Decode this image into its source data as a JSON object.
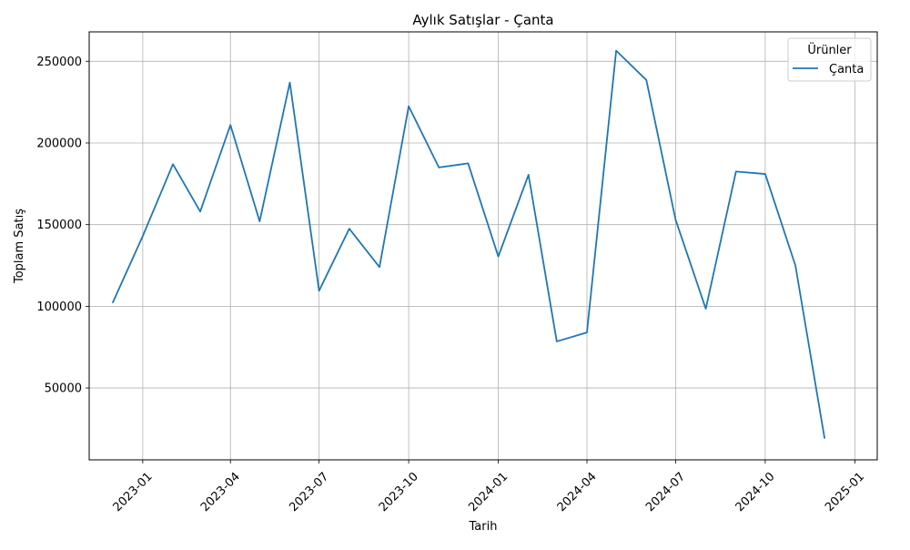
{
  "chart_data": {
    "type": "line",
    "title": "Aylık Satışlar - Çanta",
    "xlabel": "Tarih",
    "ylabel": "Toplam Satış",
    "grid": true,
    "legend": {
      "title": "Ürünler",
      "placement": "top-right"
    },
    "x": [
      "2022-12-01",
      "2023-01-01",
      "2023-02-01",
      "2023-03-01",
      "2023-04-01",
      "2023-05-01",
      "2023-06-01",
      "2023-07-01",
      "2023-08-01",
      "2023-09-01",
      "2023-10-01",
      "2023-11-01",
      "2023-12-01",
      "2024-01-01",
      "2024-02-01",
      "2024-03-01",
      "2024-04-01",
      "2024-05-01",
      "2024-06-01",
      "2024-07-01",
      "2024-08-01",
      "2024-09-01",
      "2024-10-01",
      "2024-11-01",
      "2024-12-01"
    ],
    "series": [
      {
        "name": "Çanta",
        "color": "#1f77b4",
        "values": [
          102000,
          143000,
          187000,
          158000,
          211000,
          152000,
          237000,
          109500,
          147500,
          124000,
          222500,
          185000,
          187500,
          130500,
          180500,
          78500,
          84000,
          256500,
          238500,
          153000,
          98500,
          182500,
          181000,
          125000,
          19000
        ]
      }
    ],
    "xlim": [
      "2022-11-07",
      "2025-01-24"
    ],
    "ylim": [
      6000,
      268000
    ],
    "x_ticks": [
      "2023-01-01",
      "2023-04-01",
      "2023-07-01",
      "2023-10-01",
      "2024-01-01",
      "2024-04-01",
      "2024-07-01",
      "2024-10-01",
      "2025-01-01"
    ],
    "x_tick_labels": [
      "2023-01",
      "2023-04",
      "2023-07",
      "2023-10",
      "2024-01",
      "2024-04",
      "2024-07",
      "2024-10",
      "2025-01"
    ],
    "y_ticks": [
      50000,
      100000,
      150000,
      200000,
      250000
    ],
    "y_tick_labels": [
      "50000",
      "100000",
      "150000",
      "200000",
      "250000"
    ],
    "colors": {
      "grid": "#b0b0b0",
      "axis": "#000000",
      "line": "#1f77b4",
      "legend_border": "#cccccc"
    }
  }
}
